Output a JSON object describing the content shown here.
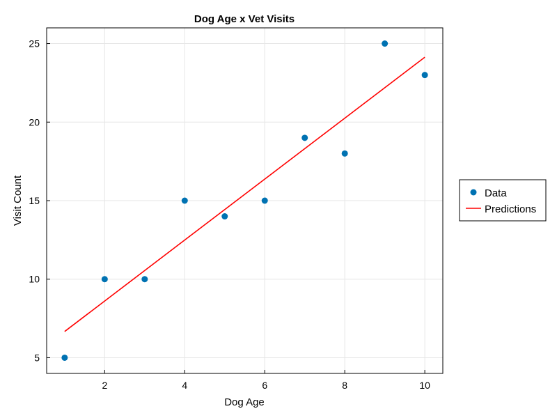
{
  "chart_data": {
    "type": "scatter",
    "title": "Dog Age x Vet Visits",
    "xlabel": "Dog Age",
    "ylabel": "Visit Count",
    "xlim": [
      0.55,
      10.45
    ],
    "ylim": [
      4.0,
      26.0
    ],
    "xticks": [
      2,
      4,
      6,
      8,
      10
    ],
    "yticks": [
      5,
      10,
      15,
      20,
      25
    ],
    "grid": true,
    "legend_position": "right",
    "series": [
      {
        "name": "Data",
        "kind": "scatter",
        "color": "#0072b2",
        "x": [
          1,
          2,
          3,
          4,
          5,
          6,
          7,
          8,
          9,
          10
        ],
        "y": [
          5,
          10,
          10,
          15,
          14,
          15,
          19,
          18,
          25,
          23
        ]
      },
      {
        "name": "Predictions",
        "kind": "line",
        "color": "#ff0000",
        "x": [
          1,
          10
        ],
        "y": [
          6.67,
          24.13
        ]
      }
    ]
  }
}
